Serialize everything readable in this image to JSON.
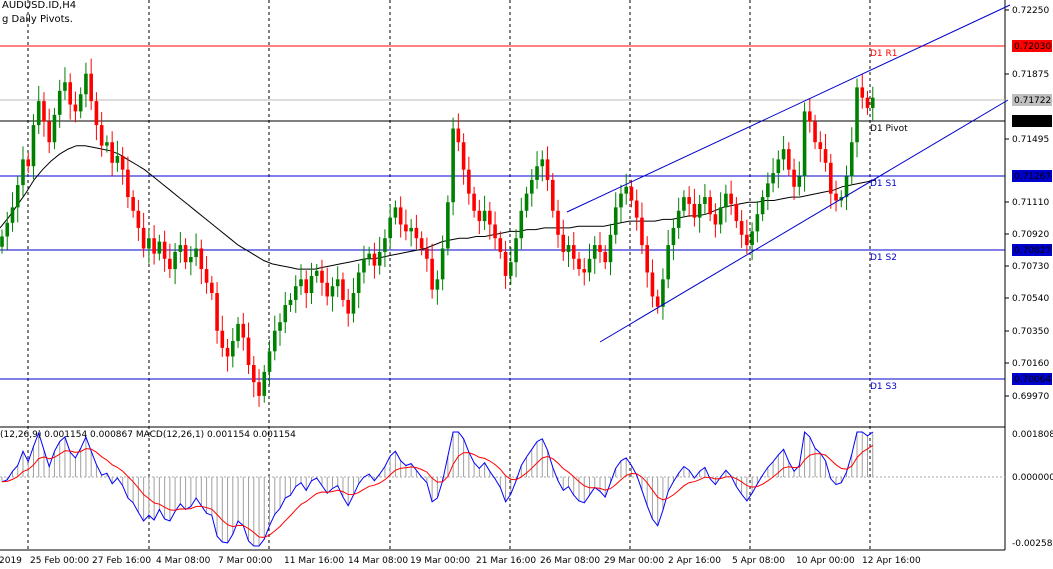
{
  "header": {
    "symbol_line": "AUDUSD.ID,H4",
    "indicator_line": "g Daily Pivots."
  },
  "macd_label": "(12,26,9) 0.001154 0.000867 MACD(12,26,1) 0.001154 0.001154",
  "colors": {
    "bull": "#008000",
    "bear": "#ff0000",
    "r1": "#ff0000",
    "pivot": "#000000",
    "support": "#0000cc",
    "channel": "#0000cc",
    "ma": "#000000",
    "macd_line": "#0000ff",
    "signal_line": "#ff0000",
    "grid": "#000000"
  },
  "chart_data": {
    "type": "candlestick",
    "price_scale": {
      "min": 0.6985,
      "max": 0.7233,
      "ticks": [
        "0.72250",
        "0.71875",
        "0.71495",
        "0.71110",
        "0.70920",
        "0.70730",
        "0.70540",
        "0.70350",
        "0.70160",
        "0.69970"
      ]
    },
    "levels": [
      {
        "name": "R1",
        "label": "D1 R1",
        "value": "0.72030",
        "price": 0.7203,
        "role": "r1"
      },
      {
        "name": "Pivot",
        "label": "D1 Pivot",
        "value": "0.71590",
        "price": 0.7159,
        "role": "pivot"
      },
      {
        "name": "S1",
        "label": "D1 S1",
        "value": "0.71267",
        "price": 0.71267,
        "role": "support"
      },
      {
        "name": "S2",
        "label": "D1 S2",
        "value": "0.70827",
        "price": 0.70827,
        "role": "support"
      },
      {
        "name": "S3",
        "label": "D1 S3",
        "value": "0.70064",
        "price": 0.70064,
        "role": "support"
      }
    ],
    "current_price": {
      "value": "0.71722",
      "price": 0.71722
    },
    "x_labels": [
      "2019",
      "25 Feb 00:00",
      "27 Feb 16:00",
      "4 Mar 08:00",
      "7 Mar 00:00",
      "11 Mar 16:00",
      "14 Mar 08:00",
      "19 Mar 00:00",
      "21 Mar 16:00",
      "26 Mar 08:00",
      "29 Mar 00:00",
      "2 Apr 16:00",
      "5 Apr 08:00",
      "10 Apr 00:00",
      "12 Apr 16:00"
    ],
    "closes": [
      0.7095,
      0.7103,
      0.7112,
      0.7125,
      0.714,
      0.7136,
      0.716,
      0.7174,
      0.7162,
      0.715,
      0.7166,
      0.718,
      0.7185,
      0.7172,
      0.7168,
      0.7178,
      0.719,
      0.7174,
      0.716,
      0.7148,
      0.715,
      0.7138,
      0.7142,
      0.7134,
      0.7118,
      0.711,
      0.71,
      0.7088,
      0.7094,
      0.7085,
      0.7092,
      0.7082,
      0.7076,
      0.7086,
      0.709,
      0.708,
      0.7083,
      0.7088,
      0.7076,
      0.7068,
      0.7062,
      0.704,
      0.703,
      0.7025,
      0.7034,
      0.7044,
      0.7036,
      0.702,
      0.701,
      0.7002,
      0.7016,
      0.7028,
      0.704,
      0.7045,
      0.7055,
      0.7058,
      0.7066,
      0.707,
      0.7062,
      0.7072,
      0.7075,
      0.7068,
      0.706,
      0.7066,
      0.707,
      0.7058,
      0.705,
      0.7062,
      0.7074,
      0.7082,
      0.7085,
      0.7078,
      0.7086,
      0.7094,
      0.7106,
      0.7112,
      0.7102,
      0.7098,
      0.71,
      0.7094,
      0.7088,
      0.7082,
      0.7064,
      0.707,
      0.7088,
      0.7115,
      0.7158,
      0.715,
      0.7134,
      0.712,
      0.711,
      0.7104,
      0.711,
      0.7102,
      0.7094,
      0.7086,
      0.7072,
      0.708,
      0.7094,
      0.711,
      0.712,
      0.7128,
      0.7136,
      0.714,
      0.7128,
      0.711,
      0.7096,
      0.7086,
      0.709,
      0.7082,
      0.7076,
      0.7074,
      0.7082,
      0.709,
      0.7086,
      0.708,
      0.7096,
      0.7112,
      0.712,
      0.7124,
      0.7116,
      0.7106,
      0.709,
      0.7074,
      0.706,
      0.7054,
      0.707,
      0.709,
      0.71,
      0.711,
      0.7118,
      0.7114,
      0.7106,
      0.7114,
      0.7118,
      0.7108,
      0.7102,
      0.7112,
      0.712,
      0.7114,
      0.7104,
      0.7096,
      0.709,
      0.7098,
      0.7108,
      0.7118,
      0.7126,
      0.7132,
      0.714,
      0.7146,
      0.7134,
      0.7124,
      0.713,
      0.7168,
      0.7162,
      0.715,
      0.7146,
      0.7138,
      0.712,
      0.7116,
      0.7118,
      0.713,
      0.715,
      0.7182,
      0.7176,
      0.717,
      0.7176
    ],
    "ma": [
      0.71,
      0.7106,
      0.7113,
      0.712,
      0.7128,
      0.7134,
      0.7139,
      0.7143,
      0.7146,
      0.7148,
      0.7148,
      0.7147,
      0.7146,
      0.7145,
      0.7143,
      0.714,
      0.7137,
      0.7134,
      0.713,
      0.7126,
      0.7122,
      0.7118,
      0.7114,
      0.711,
      0.7106,
      0.7102,
      0.7098,
      0.7094,
      0.709,
      0.7087,
      0.7084,
      0.7081,
      0.7079,
      0.7078,
      0.7077,
      0.7076,
      0.7076,
      0.7076,
      0.7077,
      0.7078,
      0.7079,
      0.708,
      0.7081,
      0.7082,
      0.7082,
      0.7083,
      0.7084,
      0.7085,
      0.7086,
      0.7087,
      0.7088,
      0.709,
      0.7092,
      0.7093,
      0.7094,
      0.7094,
      0.7095,
      0.7095,
      0.7096,
      0.7097,
      0.7098,
      0.7098,
      0.7099,
      0.7099,
      0.71,
      0.71,
      0.71,
      0.71,
      0.7101,
      0.7101,
      0.7101,
      0.7101,
      0.7102,
      0.7103,
      0.7104,
      0.7104,
      0.7104,
      0.7104,
      0.7105,
      0.7105,
      0.7106,
      0.7107,
      0.7107,
      0.7108,
      0.711,
      0.7112,
      0.7113,
      0.7114,
      0.7115,
      0.7115,
      0.7116,
      0.7116,
      0.7117,
      0.7118,
      0.7118,
      0.7119,
      0.712,
      0.7121,
      0.7122,
      0.7124,
      0.7125,
      0.7126,
      0.7127,
      0.7128
    ]
  }
}
